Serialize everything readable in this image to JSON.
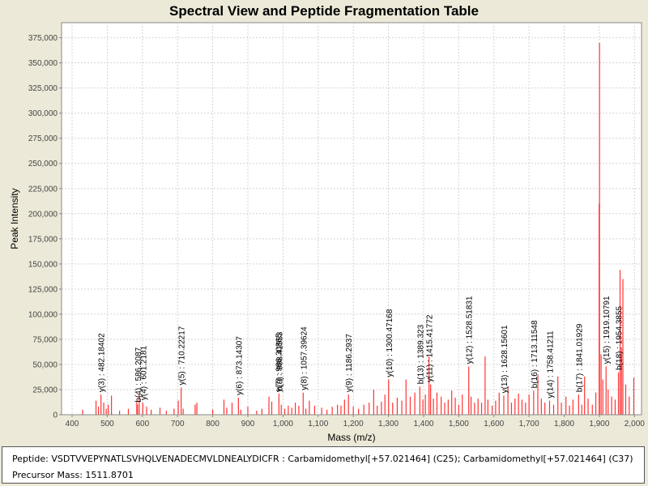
{
  "chart_data": {
    "type": "bar",
    "title": "Spectral View and Peptide Fragmentation Table",
    "xlabel": "Mass (m/z)",
    "ylabel": "Peak Intensity",
    "xlim": [
      370,
      2020
    ],
    "ylim": [
      0,
      390000
    ],
    "x_ticks": [
      400,
      500,
      600,
      700,
      800,
      900,
      1000,
      1100,
      1200,
      1300,
      1400,
      1500,
      1600,
      1700,
      1800,
      1900,
      2000
    ],
    "x_tick_labels": [
      "400",
      "500",
      "600",
      "700",
      "800",
      "900",
      "1,000",
      "1,100",
      "1,200",
      "1,300",
      "1,400",
      "1,500",
      "1,600",
      "1,700",
      "1,800",
      "1,900",
      "2,000"
    ],
    "y_ticks": [
      0,
      25000,
      50000,
      75000,
      100000,
      125000,
      150000,
      175000,
      200000,
      225000,
      250000,
      275000,
      300000,
      325000,
      350000,
      375000
    ],
    "y_tick_labels": [
      "0",
      "25,000",
      "50,000",
      "75,000",
      "100,000",
      "125,000",
      "150,000",
      "175,000",
      "200,000",
      "225,000",
      "250,000",
      "275,000",
      "300,000",
      "325,000",
      "350,000",
      "375,000"
    ],
    "grid": true,
    "peak_color": "#ff3333",
    "annotation_color": "#000000",
    "peaks": [
      {
        "mz": 430,
        "intensity": 5000
      },
      {
        "mz": 468,
        "intensity": 14000
      },
      {
        "mz": 475,
        "intensity": 8000
      },
      {
        "mz": 482.18,
        "intensity": 20000
      },
      {
        "mz": 490,
        "intensity": 12000
      },
      {
        "mz": 497,
        "intensity": 6000
      },
      {
        "mz": 503,
        "intensity": 10000
      },
      {
        "mz": 512,
        "intensity": 19000
      },
      {
        "mz": 535,
        "intensity": 4000
      },
      {
        "mz": 560,
        "intensity": 6000
      },
      {
        "mz": 584,
        "intensity": 13000
      },
      {
        "mz": 586.2,
        "intensity": 10000
      },
      {
        "mz": 591,
        "intensity": 20000
      },
      {
        "mz": 601.2,
        "intensity": 12000
      },
      {
        "mz": 612,
        "intensity": 8000
      },
      {
        "mz": 625,
        "intensity": 5000
      },
      {
        "mz": 650,
        "intensity": 7000
      },
      {
        "mz": 668,
        "intensity": 4000
      },
      {
        "mz": 690,
        "intensity": 6000
      },
      {
        "mz": 702,
        "intensity": 14000
      },
      {
        "mz": 710.22,
        "intensity": 27000
      },
      {
        "mz": 716,
        "intensity": 6000
      },
      {
        "mz": 750,
        "intensity": 10000
      },
      {
        "mz": 755,
        "intensity": 12000
      },
      {
        "mz": 800,
        "intensity": 5000
      },
      {
        "mz": 832,
        "intensity": 15000
      },
      {
        "mz": 840,
        "intensity": 7000
      },
      {
        "mz": 855,
        "intensity": 12000
      },
      {
        "mz": 873.14,
        "intensity": 17000
      },
      {
        "mz": 880,
        "intensity": 5000
      },
      {
        "mz": 900,
        "intensity": 8000
      },
      {
        "mz": 925,
        "intensity": 4000
      },
      {
        "mz": 940,
        "intensity": 6000
      },
      {
        "mz": 960,
        "intensity": 18000
      },
      {
        "mz": 968,
        "intensity": 13000
      },
      {
        "mz": 988.42,
        "intensity": 21000
      },
      {
        "mz": 995,
        "intensity": 10000
      },
      {
        "mz": 1005,
        "intensity": 6000
      },
      {
        "mz": 1015,
        "intensity": 9000
      },
      {
        "mz": 1025,
        "intensity": 7000
      },
      {
        "mz": 1035,
        "intensity": 12000
      },
      {
        "mz": 1045,
        "intensity": 9000
      },
      {
        "mz": 1057.4,
        "intensity": 22000
      },
      {
        "mz": 1065,
        "intensity": 6000
      },
      {
        "mz": 1075,
        "intensity": 14000
      },
      {
        "mz": 1090,
        "intensity": 9000
      },
      {
        "mz": 1110,
        "intensity": 7000
      },
      {
        "mz": 1125,
        "intensity": 5000
      },
      {
        "mz": 1140,
        "intensity": 8000
      },
      {
        "mz": 1155,
        "intensity": 10000
      },
      {
        "mz": 1165,
        "intensity": 9000
      },
      {
        "mz": 1175,
        "intensity": 15000
      },
      {
        "mz": 1186.29,
        "intensity": 20000
      },
      {
        "mz": 1200,
        "intensity": 8000
      },
      {
        "mz": 1215,
        "intensity": 6000
      },
      {
        "mz": 1230,
        "intensity": 10000
      },
      {
        "mz": 1245,
        "intensity": 12000
      },
      {
        "mz": 1258,
        "intensity": 25000
      },
      {
        "mz": 1268,
        "intensity": 9000
      },
      {
        "mz": 1280,
        "intensity": 13000
      },
      {
        "mz": 1290,
        "intensity": 20000
      },
      {
        "mz": 1300.47,
        "intensity": 35000
      },
      {
        "mz": 1312,
        "intensity": 12000
      },
      {
        "mz": 1325,
        "intensity": 17000
      },
      {
        "mz": 1338,
        "intensity": 14000
      },
      {
        "mz": 1350,
        "intensity": 35000
      },
      {
        "mz": 1362,
        "intensity": 18000
      },
      {
        "mz": 1375,
        "intensity": 22000
      },
      {
        "mz": 1389.32,
        "intensity": 28000
      },
      {
        "mz": 1398,
        "intensity": 15000
      },
      {
        "mz": 1405,
        "intensity": 20000
      },
      {
        "mz": 1415.42,
        "intensity": 58000
      },
      {
        "mz": 1420,
        "intensity": 30000
      },
      {
        "mz": 1428,
        "intensity": 16000
      },
      {
        "mz": 1438,
        "intensity": 22000
      },
      {
        "mz": 1450,
        "intensity": 18000
      },
      {
        "mz": 1460,
        "intensity": 12000
      },
      {
        "mz": 1470,
        "intensity": 15000
      },
      {
        "mz": 1480,
        "intensity": 24000
      },
      {
        "mz": 1490,
        "intensity": 17000
      },
      {
        "mz": 1500,
        "intensity": 10000
      },
      {
        "mz": 1510,
        "intensity": 20000
      },
      {
        "mz": 1528.52,
        "intensity": 48000
      },
      {
        "mz": 1535,
        "intensity": 18000
      },
      {
        "mz": 1545,
        "intensity": 12000
      },
      {
        "mz": 1555,
        "intensity": 16000
      },
      {
        "mz": 1565,
        "intensity": 12000
      },
      {
        "mz": 1575,
        "intensity": 58000
      },
      {
        "mz": 1583,
        "intensity": 15000
      },
      {
        "mz": 1595,
        "intensity": 9000
      },
      {
        "mz": 1605,
        "intensity": 14000
      },
      {
        "mz": 1615,
        "intensity": 22000
      },
      {
        "mz": 1628.16,
        "intensity": 19000
      },
      {
        "mz": 1640,
        "intensity": 28000
      },
      {
        "mz": 1650,
        "intensity": 12000
      },
      {
        "mz": 1660,
        "intensity": 16000
      },
      {
        "mz": 1670,
        "intensity": 21000
      },
      {
        "mz": 1680,
        "intensity": 15000
      },
      {
        "mz": 1690,
        "intensity": 12000
      },
      {
        "mz": 1700,
        "intensity": 20000
      },
      {
        "mz": 1713.12,
        "intensity": 24000
      },
      {
        "mz": 1725,
        "intensity": 40000
      },
      {
        "mz": 1735,
        "intensity": 16000
      },
      {
        "mz": 1745,
        "intensity": 12000
      },
      {
        "mz": 1758.41,
        "intensity": 14000
      },
      {
        "mz": 1770,
        "intensity": 10000
      },
      {
        "mz": 1782,
        "intensity": 38000
      },
      {
        "mz": 1792,
        "intensity": 12000
      },
      {
        "mz": 1805,
        "intensity": 18000
      },
      {
        "mz": 1815,
        "intensity": 9000
      },
      {
        "mz": 1825,
        "intensity": 15000
      },
      {
        "mz": 1841.02,
        "intensity": 20000
      },
      {
        "mz": 1850,
        "intensity": 10000
      },
      {
        "mz": 1858,
        "intensity": 38000
      },
      {
        "mz": 1868,
        "intensity": 16000
      },
      {
        "mz": 1880,
        "intensity": 10000
      },
      {
        "mz": 1890,
        "intensity": 22000
      },
      {
        "mz": 1899.5,
        "intensity": 210000
      },
      {
        "mz": 1900.5,
        "intensity": 370000
      },
      {
        "mz": 1905,
        "intensity": 60000
      },
      {
        "mz": 1910,
        "intensity": 35000
      },
      {
        "mz": 1919.11,
        "intensity": 48000
      },
      {
        "mz": 1925,
        "intensity": 25000
      },
      {
        "mz": 1935,
        "intensity": 18000
      },
      {
        "mz": 1945,
        "intensity": 15000
      },
      {
        "mz": 1954.39,
        "intensity": 42000
      },
      {
        "mz": 1959,
        "intensity": 144000
      },
      {
        "mz": 1963,
        "intensity": 66000
      },
      {
        "mz": 1967,
        "intensity": 135000
      },
      {
        "mz": 1975,
        "intensity": 30000
      },
      {
        "mz": 1985,
        "intensity": 18000
      },
      {
        "mz": 1998,
        "intensity": 37000
      }
    ],
    "annotations": [
      {
        "label": "y(3) : 482.18402",
        "mz": 482.18,
        "anchor": 20000
      },
      {
        "label": "b(4) : 586.2087",
        "mz": 586.2,
        "anchor": 10000
      },
      {
        "label": "y(4) : 601.2181",
        "mz": 601.2,
        "anchor": 12000
      },
      {
        "label": "y(5) : 710.22217",
        "mz": 710.22,
        "anchor": 27000
      },
      {
        "label": "y(6) : 873.14307",
        "mz": 873.14,
        "anchor": 17000
      },
      {
        "label": "y(7) : 986.30865",
        "mz": 986.31,
        "anchor": 20000
      },
      {
        "label": "b(9) : 988.41553",
        "mz": 988.42,
        "anchor": 21000
      },
      {
        "label": "y(8) : 1057.39624",
        "mz": 1057.4,
        "anchor": 22000
      },
      {
        "label": "y(9) : 1186.2937",
        "mz": 1186.29,
        "anchor": 20000
      },
      {
        "label": "y(10) : 1300.47168",
        "mz": 1300.47,
        "anchor": 35000
      },
      {
        "label": "b(13) : 1389.323",
        "mz": 1389.32,
        "anchor": 28000
      },
      {
        "label": "y(11) : 1415.41772",
        "mz": 1415.42,
        "anchor": 30000
      },
      {
        "label": "y(12) : 1528.51831",
        "mz": 1528.52,
        "anchor": 48000
      },
      {
        "label": "y(13) : 1628.15601",
        "mz": 1628.16,
        "anchor": 19000
      },
      {
        "label": "b(16) : 1713.11548",
        "mz": 1713.12,
        "anchor": 24000
      },
      {
        "label": "y(14) : 1758.41211",
        "mz": 1758.41,
        "anchor": 14000
      },
      {
        "label": "b(17) : 1841.01929",
        "mz": 1841.02,
        "anchor": 20000
      },
      {
        "label": "y(15) : 1919.10791",
        "mz": 1919.11,
        "anchor": 48000
      },
      {
        "label": "b(18) : 1954.3855",
        "mz": 1954.39,
        "anchor": 42000
      }
    ]
  },
  "info": {
    "peptide_line": "Peptide: VSDTVVEPYNATLSVHQLVENADECMVLDNEALYDICFR : Carbamidomethyl[+57.021464] (C25); Carbamidomethyl[+57.021464] (C37)",
    "precursor_line": "Precursor Mass: 1511.8701"
  }
}
